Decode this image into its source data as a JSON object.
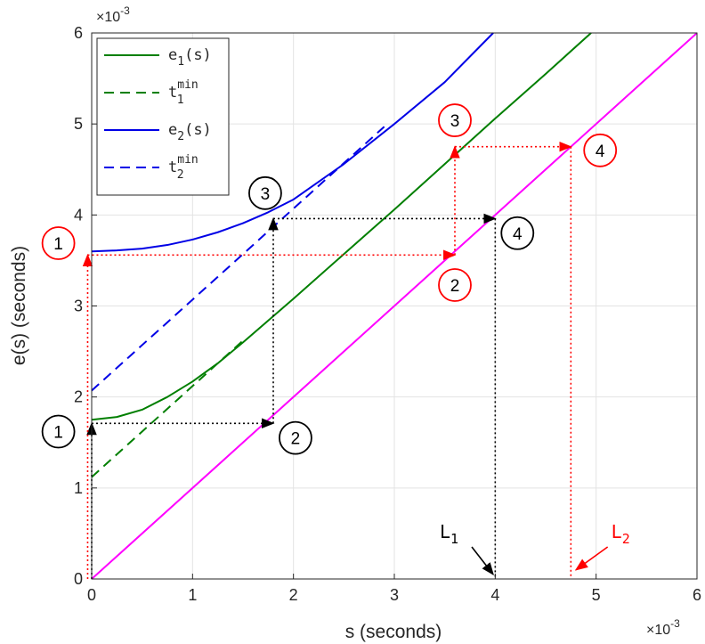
{
  "chart_data": {
    "type": "line",
    "xlabel": "s (seconds)",
    "ylabel": "e(s) (seconds)",
    "x_scale_label": {
      "base": "×10",
      "exp": "-3"
    },
    "y_scale_label": {
      "base": "×10",
      "exp": "-3"
    },
    "xlim": [
      0,
      6
    ],
    "ylim": [
      0,
      6
    ],
    "xticks": [
      "0",
      "1",
      "2",
      "3",
      "4",
      "5",
      "6"
    ],
    "yticks": [
      "0",
      "1",
      "2",
      "3",
      "4",
      "5",
      "6"
    ],
    "grid": true,
    "legend_placement": "top-left",
    "series": [
      {
        "label": "e",
        "sub": "1",
        "suffix": "(s)",
        "color": "#007f00",
        "dash": "solid",
        "points": [
          [
            0,
            1.75
          ],
          [
            0.25,
            1.78
          ],
          [
            0.5,
            1.86
          ],
          [
            0.75,
            2.0
          ],
          [
            1.0,
            2.17
          ],
          [
            1.25,
            2.37
          ],
          [
            1.5,
            2.6
          ],
          [
            1.75,
            2.84
          ],
          [
            2.0,
            3.08
          ],
          [
            2.5,
            3.57
          ],
          [
            3.0,
            4.06
          ],
          [
            3.5,
            4.56
          ],
          [
            4.0,
            5.06
          ],
          [
            4.5,
            5.55
          ],
          [
            4.95,
            6.0
          ]
        ]
      },
      {
        "label": "t",
        "sub": "1",
        "sup": "min",
        "color": "#007f00",
        "dash": "dashed",
        "points": [
          [
            0,
            1.12
          ],
          [
            1.5,
            2.62
          ]
        ]
      },
      {
        "label": "e",
        "sub": "2",
        "suffix": "(s)",
        "color": "#0000e6",
        "dash": "solid",
        "points": [
          [
            0,
            3.6
          ],
          [
            0.25,
            3.61
          ],
          [
            0.5,
            3.63
          ],
          [
            0.75,
            3.67
          ],
          [
            1.0,
            3.73
          ],
          [
            1.25,
            3.81
          ],
          [
            1.5,
            3.91
          ],
          [
            1.75,
            4.03
          ],
          [
            2.0,
            4.17
          ],
          [
            2.5,
            4.56
          ],
          [
            3.0,
            5.0
          ],
          [
            3.5,
            5.46
          ],
          [
            3.98,
            6.0
          ]
        ]
      },
      {
        "label": "t",
        "sub": "2",
        "sup": "min",
        "color": "#0000e6",
        "dash": "dashed",
        "points": [
          [
            0,
            2.07
          ],
          [
            2.9,
            4.97
          ]
        ]
      },
      {
        "label": "",
        "color": "#ff00ff",
        "dash": "solid",
        "points": [
          [
            0,
            0
          ],
          [
            6,
            6
          ]
        ]
      }
    ],
    "annotations": {
      "black_path": [
        [
          0,
          0
        ],
        [
          0,
          1.71
        ],
        [
          1.8,
          1.71
        ],
        [
          1.8,
          3.96
        ],
        [
          4.0,
          3.96
        ],
        [
          4.0,
          0
        ]
      ],
      "red_path": [
        [
          -0.04,
          0
        ],
        [
          -0.04,
          3.56
        ],
        [
          3.6,
          3.56
        ],
        [
          3.6,
          4.75
        ],
        [
          4.75,
          4.75
        ],
        [
          4.75,
          0
        ]
      ],
      "black_circles": [
        {
          "text": "1",
          "x": -0.33,
          "y": 1.62
        },
        {
          "text": "2",
          "x": 2.02,
          "y": 1.55
        },
        {
          "text": "3",
          "x": 1.72,
          "y": 4.24
        },
        {
          "text": "4",
          "x": 4.22,
          "y": 3.8
        }
      ],
      "red_circles": [
        {
          "text": "1",
          "x": -0.33,
          "y": 3.69
        },
        {
          "text": "2",
          "x": 3.6,
          "y": 3.23
        },
        {
          "text": "3",
          "x": 3.6,
          "y": 5.04
        },
        {
          "text": "4",
          "x": 5.04,
          "y": 4.71
        }
      ],
      "labels": [
        {
          "text": "L",
          "sub": "1",
          "color": "#000000",
          "x": 3.45,
          "y": 0.45,
          "arrow_to": [
            3.98,
            0.05
          ]
        },
        {
          "text": "L",
          "sub": "2",
          "color": "#ff0000",
          "x": 5.15,
          "y": 0.45,
          "arrow_to": [
            4.8,
            0.1
          ]
        }
      ]
    }
  }
}
